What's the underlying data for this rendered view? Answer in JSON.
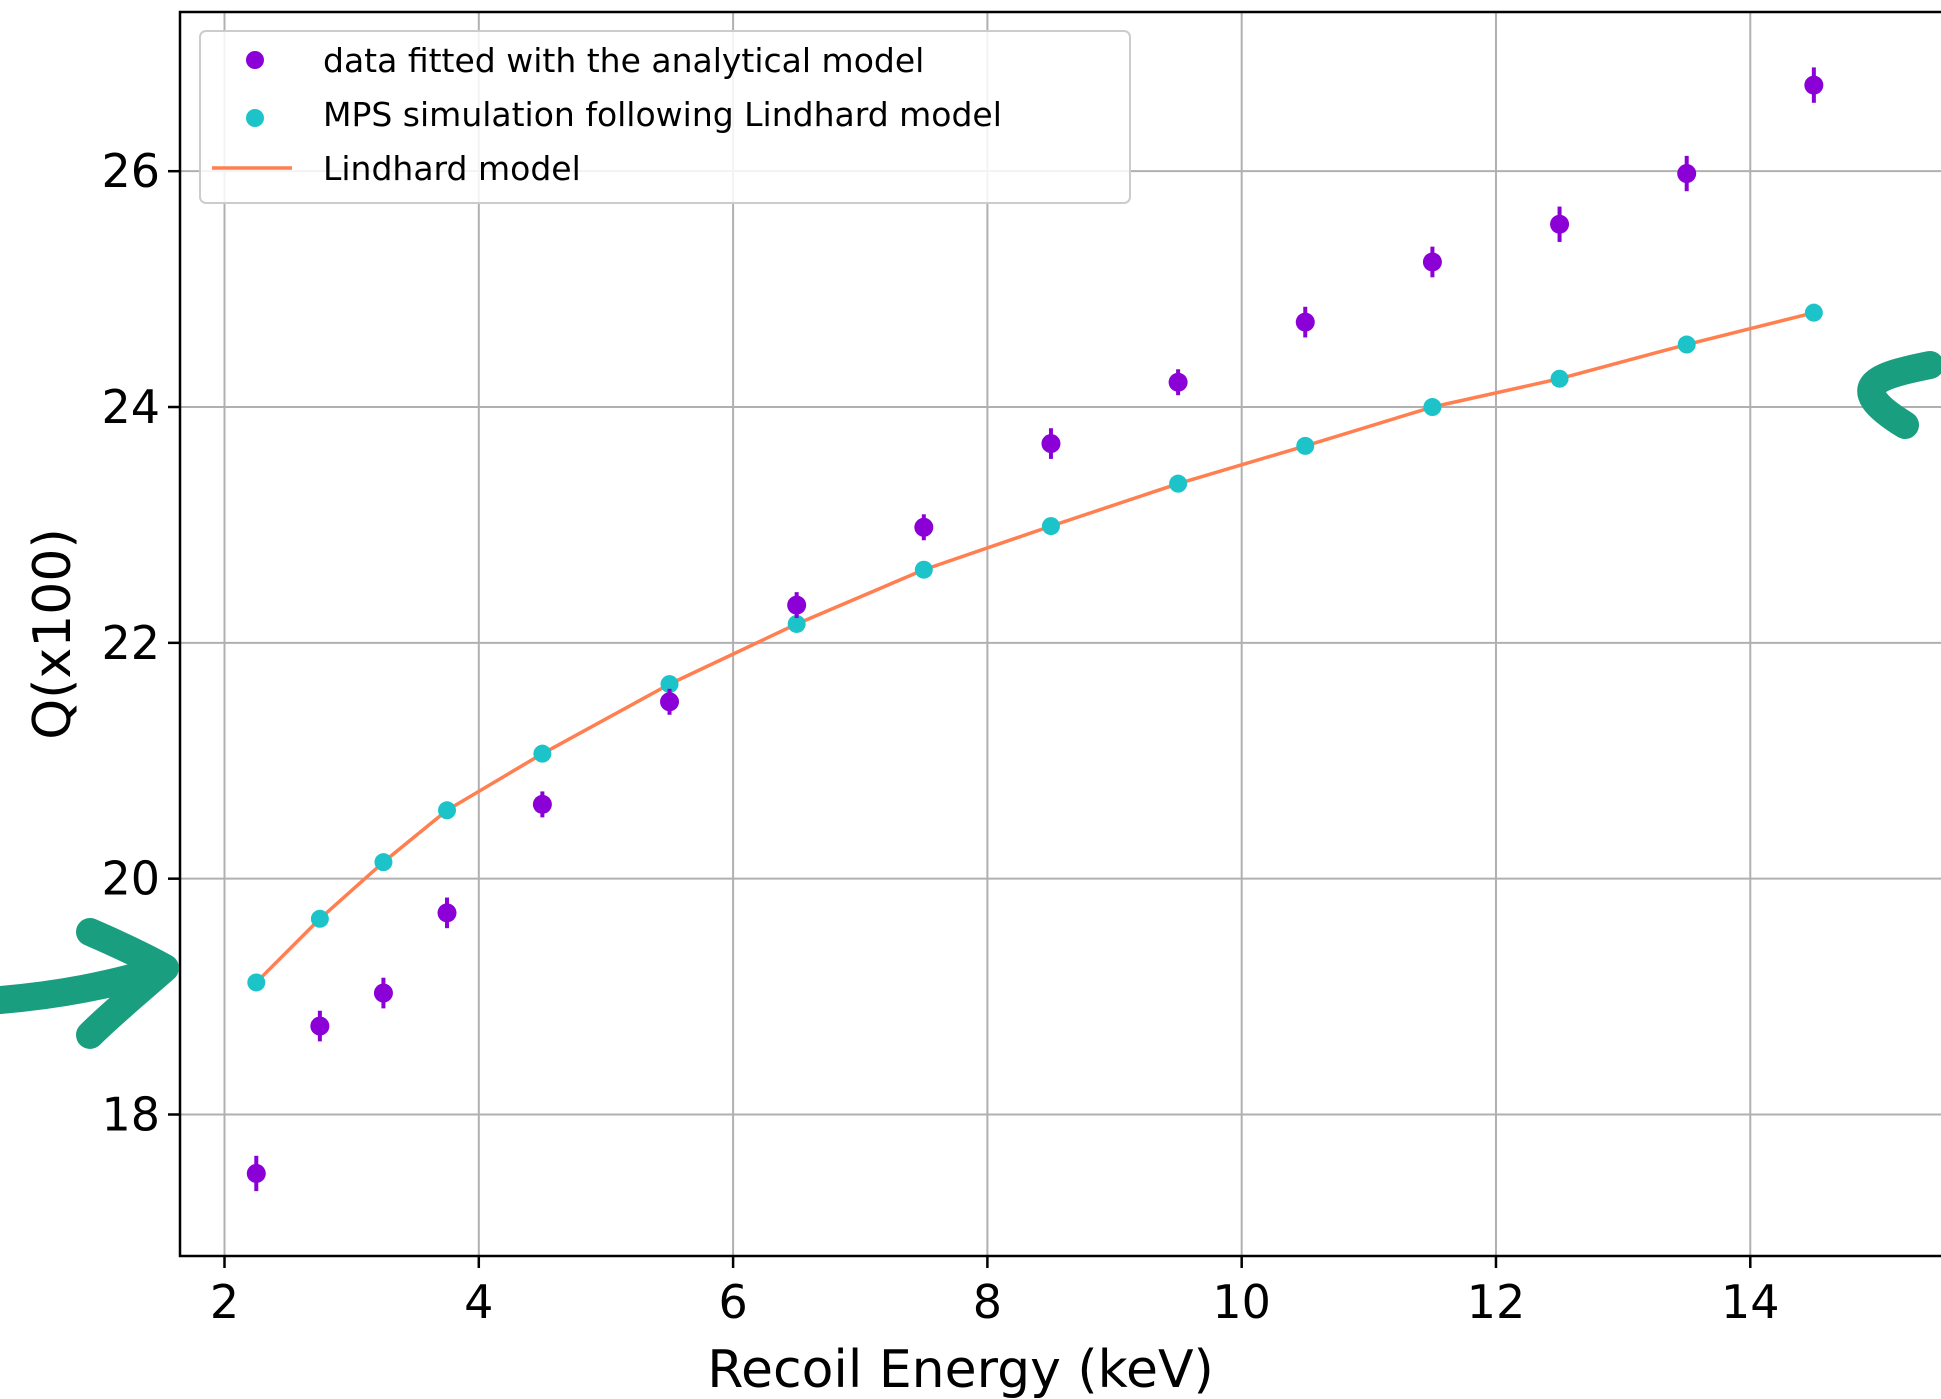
{
  "chart_data": {
    "type": "scatter",
    "title": "",
    "xlabel": "Recoil Energy (keV)",
    "ylabel": "Q(x100)",
    "xlim": [
      1.65,
      15.5
    ],
    "ylim": [
      16.8,
      27.35
    ],
    "xticks": [
      2,
      4,
      6,
      8,
      10,
      12,
      14
    ],
    "yticks": [
      18,
      20,
      22,
      24,
      26
    ],
    "grid": true,
    "legend_position": "upper-left",
    "series": [
      {
        "name": "data fitted with the analytical model",
        "kind": "scatter-errorbar",
        "color": "#8b00d6",
        "x": [
          2.25,
          2.75,
          3.25,
          3.75,
          4.5,
          5.5,
          6.5,
          7.5,
          8.5,
          9.5,
          10.5,
          11.5,
          12.5,
          13.5,
          14.5
        ],
        "y": [
          17.5,
          18.75,
          19.03,
          19.71,
          20.63,
          21.5,
          22.32,
          22.98,
          23.69,
          24.21,
          24.72,
          25.23,
          25.55,
          25.98,
          26.73
        ],
        "yerr": [
          0.15,
          0.13,
          0.13,
          0.13,
          0.11,
          0.11,
          0.11,
          0.11,
          0.13,
          0.11,
          0.13,
          0.13,
          0.15,
          0.15,
          0.15
        ]
      },
      {
        "name": "MPS simulation following Lindhard model",
        "kind": "scatter",
        "color": "#1cc4c9",
        "x": [
          2.25,
          2.75,
          3.25,
          3.75,
          4.5,
          5.5,
          6.5,
          7.5,
          8.5,
          9.5,
          10.5,
          11.5,
          12.5,
          13.5,
          14.5
        ],
        "y": [
          19.12,
          19.66,
          20.14,
          20.58,
          21.06,
          21.65,
          22.16,
          22.62,
          22.99,
          23.35,
          23.67,
          24.0,
          24.24,
          24.53,
          24.8
        ]
      },
      {
        "name": "Lindhard model",
        "kind": "line",
        "color": "#ff7f50",
        "x": [
          2.25,
          2.75,
          3.25,
          3.75,
          4.5,
          5.5,
          6.5,
          7.5,
          8.5,
          9.5,
          10.5,
          11.5,
          12.5,
          13.5,
          14.5
        ],
        "y": [
          19.12,
          19.66,
          20.14,
          20.58,
          21.06,
          21.65,
          22.16,
          22.62,
          22.99,
          23.35,
          23.67,
          24.0,
          24.24,
          24.53,
          24.8
        ]
      }
    ],
    "annotations": [
      {
        "type": "arrow",
        "color": "#1a9e80",
        "points_to": "Lindhard model curve start (left)"
      },
      {
        "type": "arrow",
        "color": "#1a9e80",
        "points_to": "Lindhard model curve end (right)"
      }
    ]
  }
}
